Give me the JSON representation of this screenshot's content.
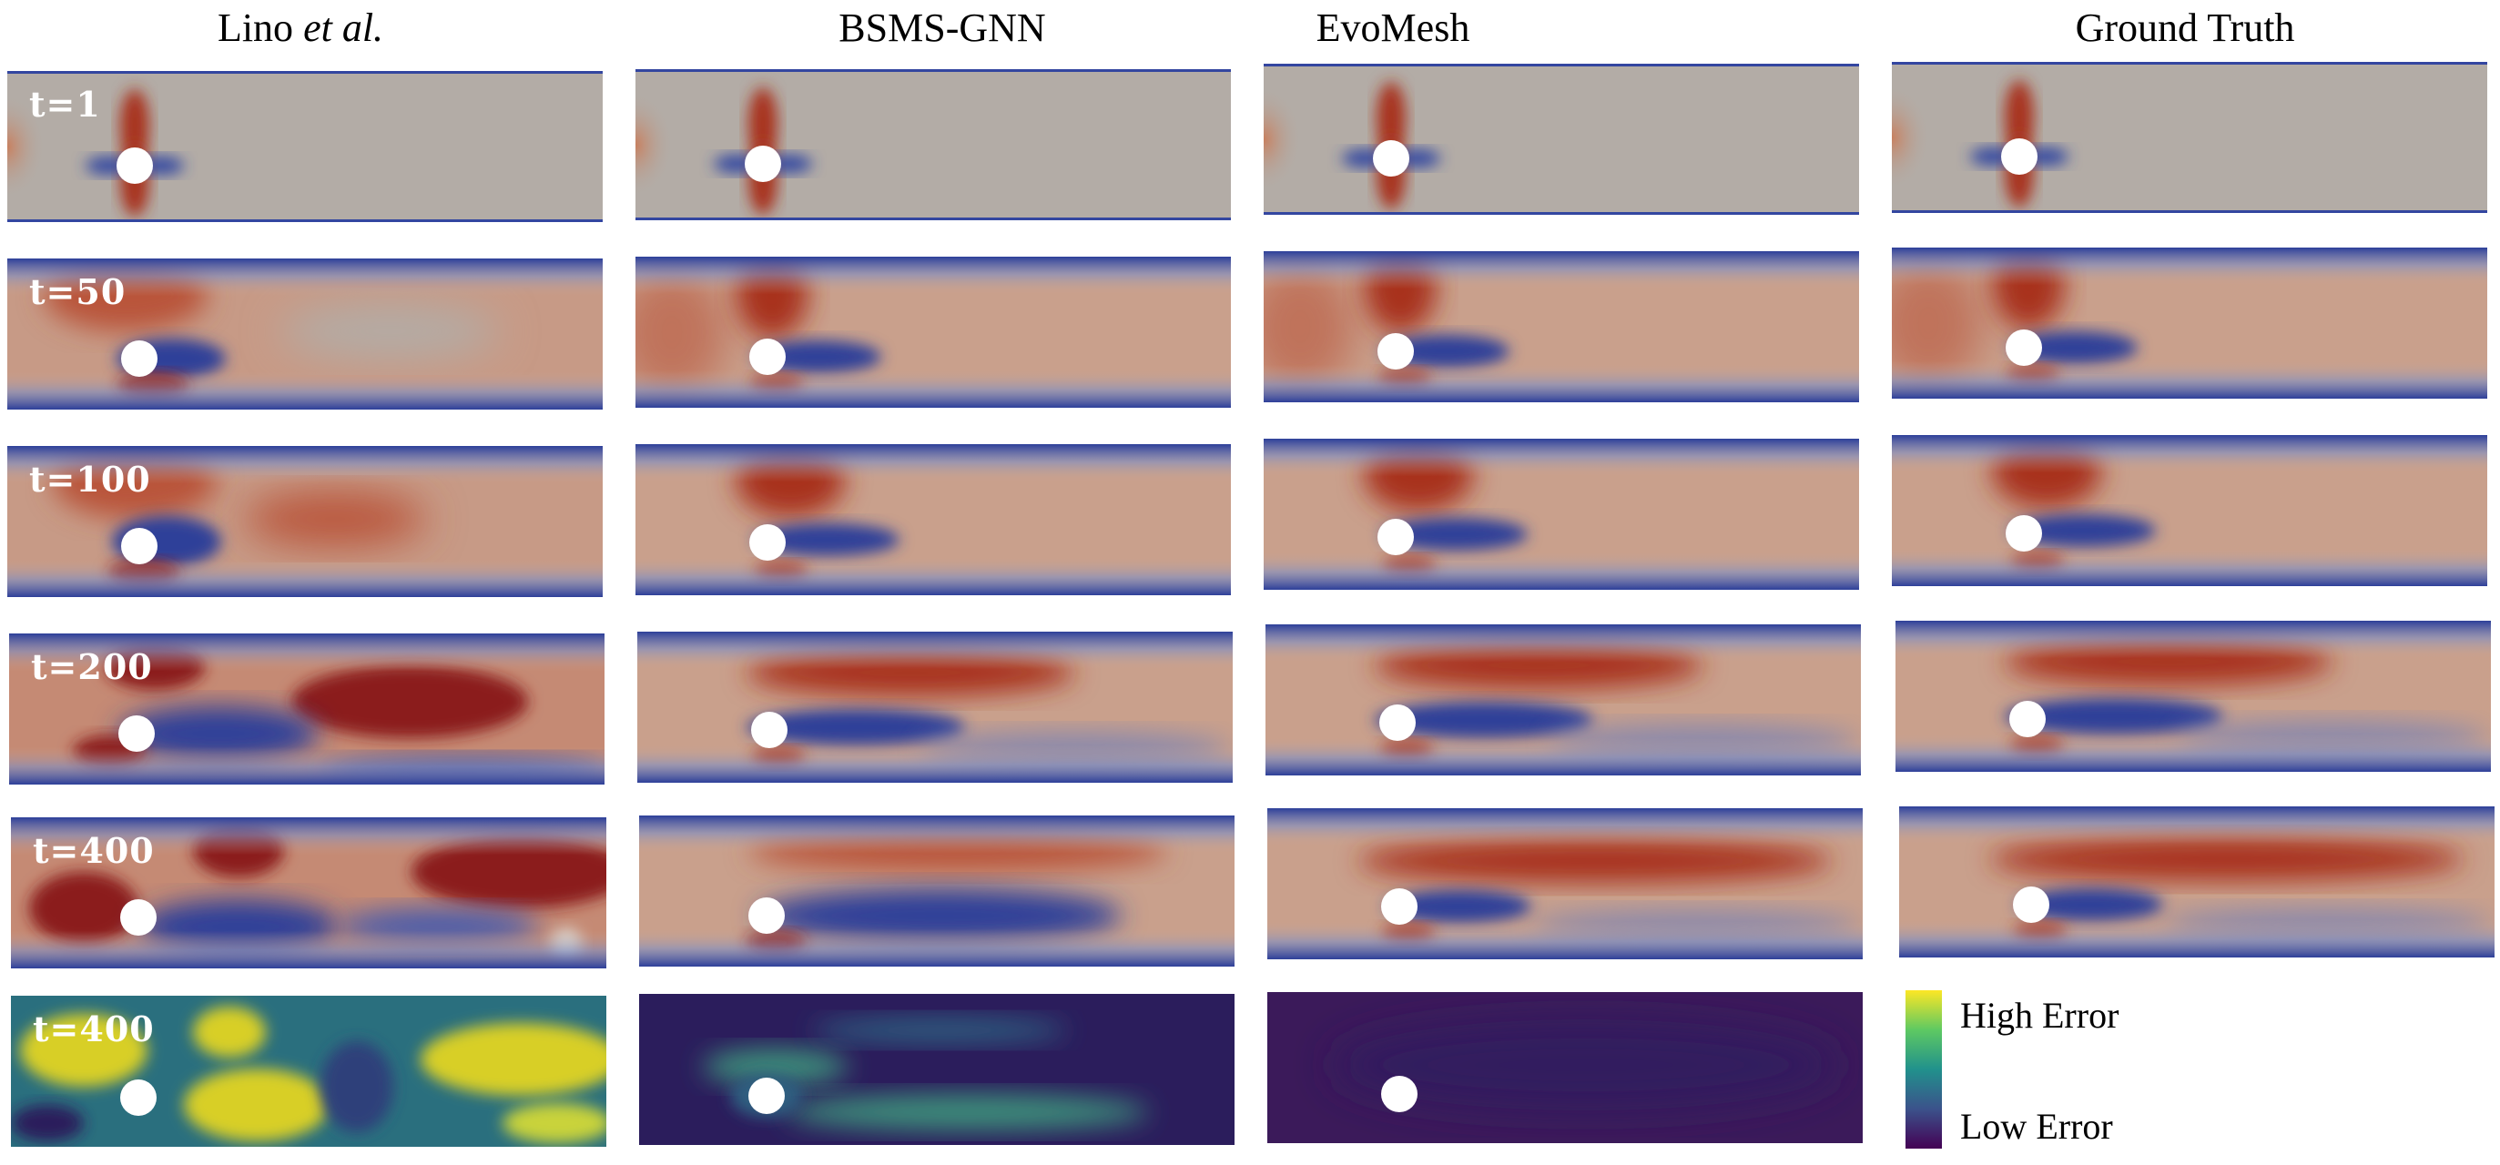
{
  "columns": [
    {
      "title_main": "Lino ",
      "title_italic": "et al.",
      "title_end": ""
    },
    {
      "title_main": "BSMS-GNN",
      "title_italic": "",
      "title_end": ""
    },
    {
      "title_main": "EvoMesh",
      "title_italic": "",
      "title_end": ""
    },
    {
      "title_main": "Ground Truth",
      "title_italic": "",
      "title_end": ""
    }
  ],
  "rows": [
    {
      "label": "t=1"
    },
    {
      "label": "t=50"
    },
    {
      "label": "t=100"
    },
    {
      "label": "t=200"
    },
    {
      "label": "t=400"
    },
    {
      "label": "t=400"
    }
  ],
  "legend": {
    "high": "High Error",
    "low": "Low Error"
  },
  "colors": {
    "red": "#a8321e",
    "deep_red": "#8b1a1a",
    "blue": "#2d3f99",
    "gray": "#b3aca6",
    "viridis_dark": "#3b1a5a",
    "viridis_yellow": "#d8cf28"
  }
}
